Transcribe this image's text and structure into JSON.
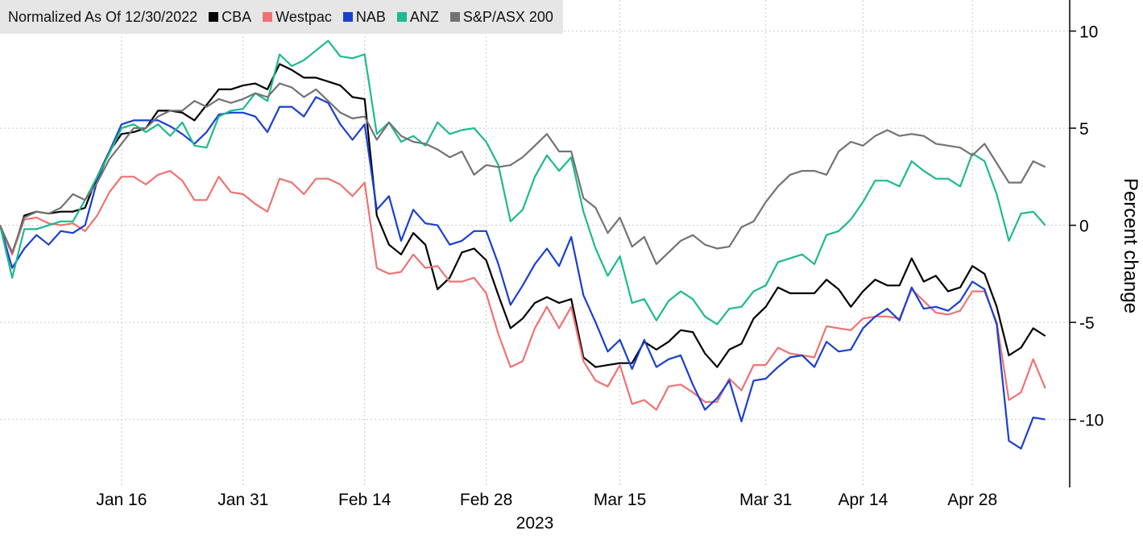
{
  "chart_data": {
    "type": "line",
    "title": "Normalized As Of 12/30/2022",
    "xlabel": "2023",
    "ylabel": "Percent change",
    "categories": [
      "2022-12-30",
      "2023-01-03",
      "2023-01-04",
      "2023-01-05",
      "2023-01-06",
      "2023-01-09",
      "2023-01-10",
      "2023-01-11",
      "2023-01-12",
      "2023-01-13",
      "2023-01-16",
      "2023-01-17",
      "2023-01-18",
      "2023-01-19",
      "2023-01-20",
      "2023-01-23",
      "2023-01-24",
      "2023-01-25",
      "2023-01-27",
      "2023-01-30",
      "2023-01-31",
      "2023-02-01",
      "2023-02-02",
      "2023-02-03",
      "2023-02-06",
      "2023-02-07",
      "2023-02-08",
      "2023-02-09",
      "2023-02-10",
      "2023-02-13",
      "2023-02-14",
      "2023-02-15",
      "2023-02-16",
      "2023-02-17",
      "2023-02-20",
      "2023-02-21",
      "2023-02-22",
      "2023-02-23",
      "2023-02-24",
      "2023-02-27",
      "2023-02-28",
      "2023-03-01",
      "2023-03-02",
      "2023-03-03",
      "2023-03-06",
      "2023-03-07",
      "2023-03-08",
      "2023-03-09",
      "2023-03-10",
      "2023-03-13",
      "2023-03-14",
      "2023-03-15",
      "2023-03-16",
      "2023-03-17",
      "2023-03-20",
      "2023-03-21",
      "2023-03-22",
      "2023-03-23",
      "2023-03-24",
      "2023-03-27",
      "2023-03-28",
      "2023-03-29",
      "2023-03-30",
      "2023-03-31",
      "2023-04-03",
      "2023-04-04",
      "2023-04-05",
      "2023-04-06",
      "2023-04-11",
      "2023-04-12",
      "2023-04-13",
      "2023-04-14",
      "2023-04-17",
      "2023-04-18",
      "2023-04-19",
      "2023-04-20",
      "2023-04-21",
      "2023-04-24",
      "2023-04-26",
      "2023-04-27",
      "2023-04-28",
      "2023-05-01",
      "2023-05-02",
      "2023-05-03",
      "2023-05-04",
      "2023-05-05",
      "2023-05-08"
    ],
    "series": [
      {
        "name": "CBA",
        "color": "#000000",
        "values": [
          0,
          -1.5,
          0.5,
          0.7,
          0.6,
          0.7,
          0.7,
          0.9,
          2.5,
          3.8,
          4.7,
          4.8,
          5.0,
          5.9,
          5.9,
          5.8,
          5.4,
          6.2,
          7.0,
          7.0,
          7.2,
          7.3,
          7.0,
          8.3,
          8.0,
          7.6,
          7.6,
          7.4,
          7.2,
          6.6,
          6.5,
          0.5,
          -1.0,
          -1.5,
          -0.4,
          -1.0,
          -3.3,
          -2.7,
          -1.4,
          -1.2,
          -1.8,
          -3.6,
          -5.3,
          -4.8,
          -4.0,
          -3.7,
          -4.0,
          -3.8,
          -6.8,
          -7.3,
          -7.2,
          -7.1,
          -7.1,
          -6.0,
          -6.4,
          -6.0,
          -5.4,
          -5.5,
          -6.6,
          -7.3,
          -6.4,
          -6.1,
          -4.8,
          -4.2,
          -3.2,
          -3.5,
          -3.5,
          -3.5,
          -2.8,
          -3.3,
          -4.2,
          -3.4,
          -2.8,
          -3.1,
          -3.1,
          -1.7,
          -2.9,
          -2.6,
          -3.4,
          -3.2,
          -2.1,
          -2.5,
          -4.2,
          -6.7,
          -6.3,
          -5.3,
          -5.7
        ]
      },
      {
        "name": "Westpac",
        "color": "#f07272",
        "values": [
          0,
          -1.5,
          0.3,
          0.4,
          0.1,
          0,
          0.1,
          -0.3,
          0.5,
          1.7,
          2.5,
          2.5,
          2.1,
          2.6,
          2.8,
          2.3,
          1.3,
          1.3,
          2.5,
          1.7,
          1.6,
          1.1,
          0.7,
          2.4,
          2.2,
          1.6,
          2.4,
          2.4,
          2.1,
          1.5,
          2.2,
          -2.2,
          -2.5,
          -2.4,
          -1.5,
          -2.2,
          -2.1,
          -2.9,
          -2.9,
          -2.7,
          -3.5,
          -5.6,
          -7.3,
          -7.0,
          -5.3,
          -4.2,
          -5.3,
          -4.2,
          -7.0,
          -8.0,
          -8.3,
          -7.2,
          -9.2,
          -9.0,
          -9.5,
          -8.3,
          -8.2,
          -8.6,
          -9.1,
          -9.1,
          -7.9,
          -8.5,
          -7.2,
          -7.2,
          -6.3,
          -6.6,
          -6.7,
          -6.8,
          -5.2,
          -5.3,
          -5.4,
          -4.8,
          -4.7,
          -4.7,
          -4.8,
          -3.3,
          -3.9,
          -4.5,
          -4.6,
          -4.4,
          -3.4,
          -3.4,
          -5.0,
          -9.0,
          -8.6,
          -6.9,
          -8.4
        ]
      },
      {
        "name": "NAB",
        "color": "#1a3fd0",
        "values": [
          0,
          -2.2,
          -1.2,
          -0.5,
          -1.0,
          -0.3,
          -0.4,
          0,
          2.3,
          3.8,
          5.2,
          5.4,
          5.4,
          5.4,
          5.1,
          4.7,
          4.2,
          4.8,
          5.7,
          5.8,
          5.8,
          5.6,
          4.8,
          6.1,
          6.1,
          5.6,
          6.6,
          6.3,
          5.2,
          4.4,
          5.2,
          0.8,
          1.5,
          -0.8,
          0.8,
          0.1,
          0,
          -1.0,
          -0.8,
          -0.3,
          -0.3,
          -2.0,
          -4.1,
          -3.1,
          -2.0,
          -1.2,
          -2.1,
          -0.6,
          -3.6,
          -5.0,
          -6.5,
          -5.9,
          -7.4,
          -5.9,
          -7.3,
          -6.9,
          -6.7,
          -8.2,
          -9.5,
          -8.9,
          -8.0,
          -10.1,
          -8.0,
          -7.9,
          -7.3,
          -6.8,
          -6.7,
          -7.3,
          -6.0,
          -6.5,
          -6.4,
          -5.3,
          -4.7,
          -4.3,
          -4.9,
          -3.2,
          -4.3,
          -4.2,
          -4.4,
          -3.9,
          -2.9,
          -3.3,
          -5.1,
          -11.1,
          -11.5,
          -9.9,
          -10.0
        ]
      },
      {
        "name": "ANZ",
        "color": "#1dba8e",
        "values": [
          0,
          -2.7,
          -0.2,
          -0.2,
          0,
          0.2,
          0.2,
          1.3,
          2.5,
          3.7,
          5.0,
          5.2,
          4.8,
          5.2,
          4.6,
          5.3,
          4.1,
          4.0,
          5.6,
          5.9,
          6.0,
          6.8,
          6.4,
          8.8,
          8.2,
          8.5,
          9.0,
          9.5,
          8.7,
          8.6,
          8.8,
          4.7,
          5.3,
          4.3,
          4.6,
          4.1,
          5.3,
          4.7,
          4.9,
          5.0,
          4.3,
          3.1,
          0.2,
          0.8,
          2.5,
          3.6,
          2.8,
          3.5,
          0.7,
          -1.2,
          -2.6,
          -1.6,
          -4.0,
          -3.8,
          -4.9,
          -3.9,
          -3.4,
          -3.8,
          -4.7,
          -5.1,
          -4.3,
          -4.2,
          -3.4,
          -3.1,
          -1.9,
          -1.7,
          -1.5,
          -2.0,
          -0.5,
          -0.3,
          0.3,
          1.2,
          2.3,
          2.3,
          2.0,
          3.3,
          2.8,
          2.4,
          2.4,
          2.0,
          3.7,
          3.3,
          1.6,
          -0.8,
          0.6,
          0.7,
          0.0
        ]
      },
      {
        "name": "S&P/ASX 200",
        "color": "#737373",
        "values": [
          0,
          -1.4,
          0.4,
          0.7,
          0.6,
          0.9,
          1.6,
          1.3,
          2.2,
          3.4,
          4.2,
          5.0,
          5.0,
          5.6,
          5.9,
          5.9,
          6.4,
          6.1,
          6.5,
          6.3,
          6.5,
          6.8,
          6.6,
          7.3,
          7.1,
          6.6,
          7.0,
          6.4,
          5.8,
          5.5,
          5.6,
          4.4,
          5.3,
          4.6,
          4.3,
          4.2,
          3.9,
          3.5,
          3.8,
          2.6,
          3.1,
          3.0,
          3.1,
          3.5,
          4.1,
          4.7,
          3.8,
          3.8,
          1.4,
          0.9,
          -0.4,
          0.4,
          -1.1,
          -0.6,
          -2.0,
          -1.4,
          -0.8,
          -0.5,
          -1.0,
          -1.2,
          -1.1,
          -0.1,
          0.2,
          1.2,
          2.0,
          2.6,
          2.8,
          2.8,
          2.6,
          3.8,
          4.3,
          4.1,
          4.6,
          4.9,
          4.6,
          4.7,
          4.6,
          4.2,
          4.1,
          4.0,
          3.6,
          4.2,
          3.2,
          2.2,
          2.2,
          3.3,
          3.0
        ]
      }
    ],
    "xticks": [
      {
        "value": "2023-01-16",
        "label": "Jan 16"
      },
      {
        "value": "2023-01-31",
        "label": "Jan 31"
      },
      {
        "value": "2023-02-14",
        "label": "Feb 14"
      },
      {
        "value": "2023-02-28",
        "label": "Feb 28"
      },
      {
        "value": "2023-03-15",
        "label": "Mar 15"
      },
      {
        "value": "2023-03-31",
        "label": "Mar 31"
      },
      {
        "value": "2023-04-14",
        "label": "Apr 14"
      },
      {
        "value": "2023-04-28",
        "label": "Apr 28"
      }
    ],
    "ylim": [
      -13.5,
      11.6
    ],
    "yticks": [
      10,
      5,
      0,
      -5,
      -10
    ],
    "grid": true,
    "legend": "top-left"
  }
}
